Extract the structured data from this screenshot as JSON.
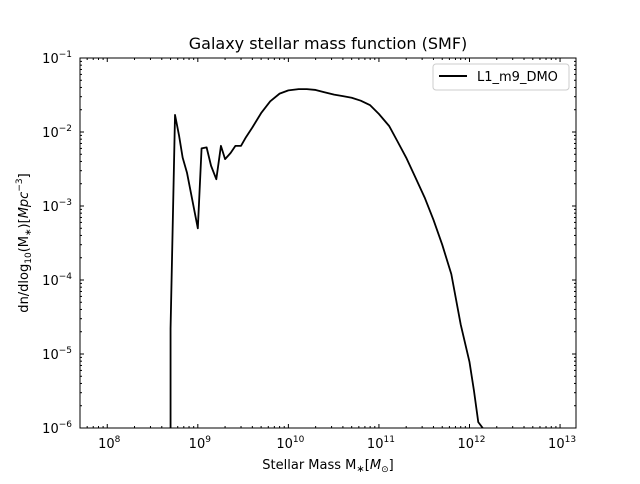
{
  "chart_data": {
    "type": "line",
    "title": "Galaxy stellar mass function (SMF)",
    "xlabel": {
      "prefix": "Stellar Mass M",
      "sub": "∗",
      "mid": "[",
      "var": "M",
      "varsub": "⊙",
      "suffix": "]"
    },
    "ylabel": {
      "prefix": "dn/dlog",
      "sub": "10",
      "mid": "(M",
      "sub2": "∗",
      "unit_open": ")[",
      "unit": "Mpc",
      "exp": "−3",
      "close": "]"
    },
    "xscale": "log",
    "yscale": "log",
    "xlim": [
      50000000.0,
      15000000000000.0
    ],
    "ylim": [
      1e-06,
      0.1
    ],
    "x_ticks": [
      {
        "value": 100000000.0,
        "base": "10",
        "exp": "8"
      },
      {
        "value": 1000000000.0,
        "base": "10",
        "exp": "9"
      },
      {
        "value": 10000000000.0,
        "base": "10",
        "exp": "10"
      },
      {
        "value": 100000000000.0,
        "base": "10",
        "exp": "11"
      },
      {
        "value": 1000000000000.0,
        "base": "10",
        "exp": "12"
      },
      {
        "value": 10000000000000.0,
        "base": "10",
        "exp": "13"
      }
    ],
    "y_ticks": [
      {
        "value": 1e-06,
        "base": "10",
        "exp": "−6"
      },
      {
        "value": 1e-05,
        "base": "10",
        "exp": "−5"
      },
      {
        "value": 0.0001,
        "base": "10",
        "exp": "−4"
      },
      {
        "value": 0.001,
        "base": "10",
        "exp": "−3"
      },
      {
        "value": 0.01,
        "base": "10",
        "exp": "−2"
      },
      {
        "value": 0.1,
        "base": "10",
        "exp": "−1"
      }
    ],
    "grid": false,
    "legend": {
      "placement": "top-right"
    },
    "series": [
      {
        "name": "L1_m9_DMO",
        "color": "#000000",
        "x": [
          500000000.0,
          500000000.0,
          560000000.0,
          620000000.0,
          680000000.0,
          760000000.0,
          1000000000.0,
          1100000000.0,
          1250000000.0,
          1400000000.0,
          1600000000.0,
          1800000000.0,
          2000000000.0,
          2300000000.0,
          2600000000.0,
          3000000000.0,
          3400000000.0,
          4000000000.0,
          5000000000.0,
          6300000000.0,
          8000000000.0,
          10000000000.0,
          13000000000.0,
          16000000000.0,
          20000000000.0,
          25000000000.0,
          32000000000.0,
          40000000000.0,
          50000000000.0,
          63000000000.0,
          80000000000.0,
          100000000000.0,
          130000000000.0,
          160000000000.0,
          200000000000.0,
          250000000000.0,
          320000000000.0,
          400000000000.0,
          500000000000.0,
          630000000000.0,
          800000000000.0,
          1000000000000.0,
          1120000000000.0,
          1250000000000.0,
          1400000000000.0
        ],
        "y": [
          1e-06,
          2.2e-05,
          0.017,
          0.009,
          0.0045,
          0.0028,
          0.0005,
          0.006,
          0.0062,
          0.0035,
          0.0023,
          0.0065,
          0.0043,
          0.0052,
          0.0065,
          0.0065,
          0.0085,
          0.0115,
          0.018,
          0.026,
          0.033,
          0.0365,
          0.038,
          0.038,
          0.037,
          0.0345,
          0.032,
          0.0305,
          0.029,
          0.0265,
          0.023,
          0.0175,
          0.012,
          0.0075,
          0.0045,
          0.0025,
          0.0013,
          0.00065,
          0.0003,
          0.00012,
          2.5e-05,
          7.8e-06,
          3.2e-06,
          1.2e-06,
          1e-06
        ]
      }
    ]
  }
}
